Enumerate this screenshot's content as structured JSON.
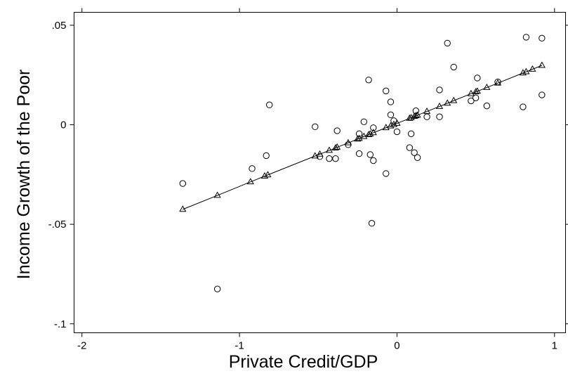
{
  "chart_data": {
    "type": "scatter",
    "title": "",
    "xlabel": "Private Credit/GDP",
    "ylabel": "Income Growth of the Poor",
    "xlim": [
      -2.05,
      1.07
    ],
    "ylim": [
      -0.1045,
      0.0565
    ],
    "x_ticks": [
      {
        "value": -2,
        "label": "-2"
      },
      {
        "value": -1,
        "label": "-1"
      },
      {
        "value": 0,
        "label": "0"
      },
      {
        "value": 1,
        "label": "1"
      }
    ],
    "y_ticks": [
      {
        "value": 0.05,
        "label": ".05"
      },
      {
        "value": 0,
        "label": "0"
      },
      {
        "value": -0.05,
        "label": "-.05"
      },
      {
        "value": -0.1,
        "label": "-.1"
      }
    ],
    "grid": false,
    "series": [
      {
        "marker": "circle",
        "points": [
          [
            -1.36,
            -0.0295
          ],
          [
            -1.14,
            -0.0825
          ],
          [
            -0.92,
            -0.022
          ],
          [
            -0.83,
            -0.0155
          ],
          [
            -0.81,
            0.01
          ],
          [
            -0.52,
            -0.001
          ],
          [
            -0.49,
            -0.016
          ],
          [
            -0.43,
            -0.017
          ],
          [
            -0.39,
            -0.017
          ],
          [
            -0.38,
            -0.003
          ],
          [
            -0.31,
            -0.01
          ],
          [
            -0.24,
            -0.0145
          ],
          [
            -0.24,
            -0.0045
          ],
          [
            -0.21,
            0.0015
          ],
          [
            -0.18,
            0.0225
          ],
          [
            -0.17,
            -0.015
          ],
          [
            -0.16,
            -0.0495
          ],
          [
            -0.15,
            -0.018
          ],
          [
            -0.15,
            -0.0015
          ],
          [
            -0.07,
            0.017
          ],
          [
            -0.07,
            -0.0245
          ],
          [
            -0.04,
            0.0115
          ],
          [
            -0.04,
            0.005
          ],
          [
            -0.02,
            0.002
          ],
          [
            0.0,
            -0.0035
          ],
          [
            0.08,
            -0.0115
          ],
          [
            0.09,
            -0.0045
          ],
          [
            0.11,
            -0.014
          ],
          [
            0.12,
            0.007
          ],
          [
            0.13,
            -0.0165
          ],
          [
            0.19,
            0.004
          ],
          [
            0.27,
            0.0175
          ],
          [
            0.27,
            0.004
          ],
          [
            0.32,
            0.041
          ],
          [
            0.36,
            0.029
          ],
          [
            0.47,
            0.012
          ],
          [
            0.5,
            0.0135
          ],
          [
            0.51,
            0.0235
          ],
          [
            0.57,
            0.0095
          ],
          [
            0.64,
            0.0215
          ],
          [
            0.8,
            0.009
          ],
          [
            0.82,
            0.044
          ],
          [
            0.92,
            0.0435
          ],
          [
            0.92,
            0.015
          ]
        ]
      },
      {
        "marker": "triangle",
        "line": true,
        "points": [
          [
            -1.36,
            -0.0425
          ],
          [
            -1.14,
            -0.0355
          ],
          [
            -0.93,
            -0.0287
          ],
          [
            -0.84,
            -0.0258
          ],
          [
            -0.82,
            -0.0252
          ],
          [
            -0.52,
            -0.0157
          ],
          [
            -0.49,
            -0.0148
          ],
          [
            -0.43,
            -0.0129
          ],
          [
            -0.39,
            -0.0117
          ],
          [
            -0.38,
            -0.0113
          ],
          [
            -0.31,
            -0.0091
          ],
          [
            -0.25,
            -0.0072
          ],
          [
            -0.24,
            -0.0069
          ],
          [
            -0.21,
            -0.0059
          ],
          [
            -0.18,
            -0.005
          ],
          [
            -0.17,
            -0.0047
          ],
          [
            -0.15,
            -0.004
          ],
          [
            -0.07,
            -0.0015
          ],
          [
            -0.04,
            -0.0006
          ],
          [
            -0.02,
            0.0001
          ],
          [
            0.0,
            0.0007
          ],
          [
            0.08,
            0.0032
          ],
          [
            0.09,
            0.0035
          ],
          [
            0.11,
            0.0042
          ],
          [
            0.12,
            0.0045
          ],
          [
            0.13,
            0.0048
          ],
          [
            0.19,
            0.0067
          ],
          [
            0.27,
            0.0092
          ],
          [
            0.32,
            0.0108
          ],
          [
            0.36,
            0.0121
          ],
          [
            0.47,
            0.0156
          ],
          [
            0.5,
            0.0165
          ],
          [
            0.51,
            0.0168
          ],
          [
            0.57,
            0.0187
          ],
          [
            0.64,
            0.0209
          ],
          [
            0.8,
            0.026
          ],
          [
            0.82,
            0.0266
          ],
          [
            0.86,
            0.0279
          ],
          [
            0.92,
            0.0298
          ]
        ]
      }
    ]
  }
}
